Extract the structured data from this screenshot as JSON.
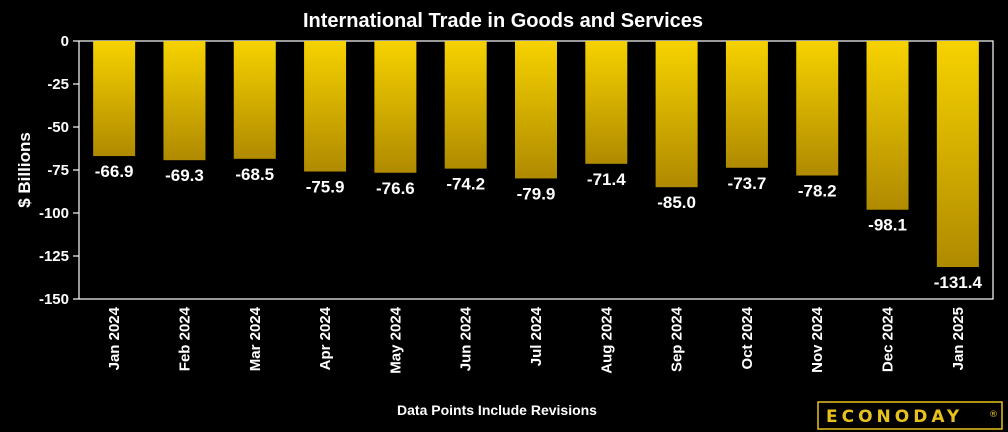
{
  "chart_data": {
    "type": "bar",
    "title": "International Trade in Goods and Services",
    "ylabel": "$ Billions",
    "xlabel": "",
    "footnote": "Data Points Include Revisions",
    "categories": [
      "Jan 2024",
      "Feb 2024",
      "Mar 2024",
      "Apr 2024",
      "May 2024",
      "Jun 2024",
      "Jul 2024",
      "Aug 2024",
      "Sep 2024",
      "Oct 2024",
      "Nov 2024",
      "Dec 2024",
      "Jan 2025"
    ],
    "values": [
      -66.9,
      -69.3,
      -68.5,
      -75.9,
      -76.6,
      -74.2,
      -79.9,
      -71.4,
      -85.0,
      -73.7,
      -78.2,
      -98.1,
      -131.4
    ],
    "value_labels": [
      "-66.9",
      "-69.3",
      "-68.5",
      "-75.9",
      "-76.6",
      "-74.2",
      "-79.9",
      "-71.4",
      "-85.0",
      "-73.7",
      "-78.2",
      "-98.1",
      "-131.4"
    ],
    "yticks": [
      0,
      -25,
      -50,
      -75,
      -100,
      -125,
      -150
    ],
    "ylim": [
      -150,
      0
    ],
    "grid": false,
    "legend": "none",
    "colors": {
      "bar_top": "#f6d200",
      "bar_bottom": "#b08a00",
      "background": "#000000",
      "frame": "#ffffff"
    }
  },
  "logo": {
    "text": "ECONODAY",
    "mark": "®"
  }
}
